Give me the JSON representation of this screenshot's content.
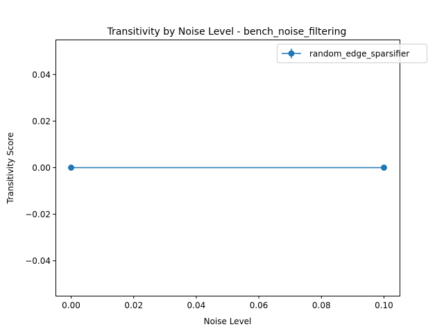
{
  "chart_data": {
    "type": "line",
    "title": "Transitivity by Noise Level - bench_noise_filtering",
    "xlabel": "Noise Level",
    "ylabel": "Transitivity Score",
    "xlim": [
      -0.005,
      0.105
    ],
    "ylim": [
      -0.055,
      0.055
    ],
    "x_ticks": [
      "0.00",
      "0.02",
      "0.04",
      "0.06",
      "0.08",
      "0.10"
    ],
    "x_tick_values": [
      0.0,
      0.02,
      0.04,
      0.06,
      0.08,
      0.1
    ],
    "y_ticks": [
      "−0.04",
      "−0.02",
      "0.00",
      "0.02",
      "0.04"
    ],
    "y_tick_values": [
      -0.04,
      -0.02,
      0.0,
      0.02,
      0.04
    ],
    "grid": false,
    "legend_position": "top-right",
    "series": [
      {
        "name": "random_edge_sparsifier",
        "color": "#1f77b4",
        "marker": "circle",
        "x": [
          0.0,
          0.1
        ],
        "y": [
          0.0,
          0.0
        ]
      }
    ]
  }
}
